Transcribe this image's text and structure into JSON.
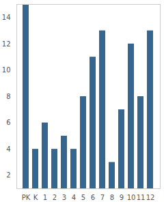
{
  "chart_data": {
    "type": "bar",
    "categories": [
      "PK",
      "K",
      "1",
      "2",
      "3",
      "4",
      "5",
      "6",
      "7",
      "8",
      "9",
      "10",
      "11",
      "12"
    ],
    "values": [
      15,
      4,
      6,
      4,
      5,
      4,
      8,
      11,
      13,
      3,
      7,
      12,
      8,
      13
    ],
    "color": "#356690",
    "ylim": [
      1,
      15
    ],
    "yticks": [
      2,
      4,
      6,
      8,
      10,
      12,
      14
    ],
    "grid": false
  }
}
